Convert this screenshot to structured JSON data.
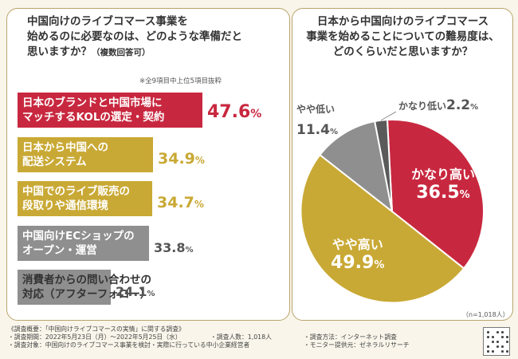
{
  "left_panel": {
    "title_lines": [
      "中国向けのライブコマース事業を",
      "始めるのに必要なのは、どのような準備だと",
      "思いますか？"
    ],
    "title_suffix": "（複数回答可）",
    "note": "※全9項目中上位5項目抜粋"
  },
  "right_panel": {
    "title_lines": [
      "日本から中国向けのライブコマース",
      "事業を始めることについての難易度は、",
      "どのくらいだと思いますか？"
    ],
    "sample_note": "（n=1,018人）"
  },
  "chart_data": [
    {
      "type": "bar",
      "orientation": "horizontal",
      "title": "中国向けのライブコマース事業を始めるのに必要なのは、どのような準備だと思いますか？（複数回答可）",
      "subtitle": "※全9項目中上位5項目抜粋",
      "unit": "%",
      "categories": [
        [
          "日本のブランドと中国市場に",
          "マッチするKOLの選定・契約"
        ],
        [
          "日本から中国への",
          "配送システム"
        ],
        [
          "中国でのライブ販売の",
          "段取りや通信環境"
        ],
        [
          "中国向けECショップの",
          "オープン・運営"
        ],
        [
          "消費者からの問い合わせの",
          "対応（アフターフォロー）"
        ]
      ],
      "values": [
        47.6,
        34.9,
        34.7,
        33.8,
        24.1
      ],
      "colors": [
        "#c8283f",
        "#c9a935",
        "#c9a935",
        "#8f8f8f",
        "#8f8f8f"
      ],
      "label_colors": [
        "#ffffff",
        "#ffffff",
        "#ffffff",
        "#ffffff",
        "#333333"
      ],
      "pct_colors": [
        "#c8283f",
        "#c9a935",
        "#c9a935",
        "#555555",
        "#555555"
      ]
    },
    {
      "type": "pie",
      "title": "日本から中国向けのライブコマース事業を始めることについての難易度は、どのくらいだと思いますか？",
      "labels": [
        "かなり高い",
        "やや高い",
        "やや低い",
        "かなり低い"
      ],
      "values": [
        36.5,
        49.9,
        11.4,
        2.2
      ],
      "colors": [
        "#c8283f",
        "#c9a935",
        "#8f8f8f",
        "#5a5a5a"
      ],
      "unit": "%",
      "n": "n=1,018人"
    }
  ],
  "footer": {
    "left": [
      "《調査概要：「中国向けライブコマースの実情」に関する調査》",
      "・調査期間：2022年5月23日（月）～2022年5月25日（水）",
      "・調査対象：中国向けのライブコマース事業を検討・実際に行っている中小企業経営者"
    ],
    "middle": "・調査人数：1,018人",
    "right": [
      "・調査方法：インターネット調査",
      "・モニター提供元：ゼネラルリサーチ"
    ]
  }
}
